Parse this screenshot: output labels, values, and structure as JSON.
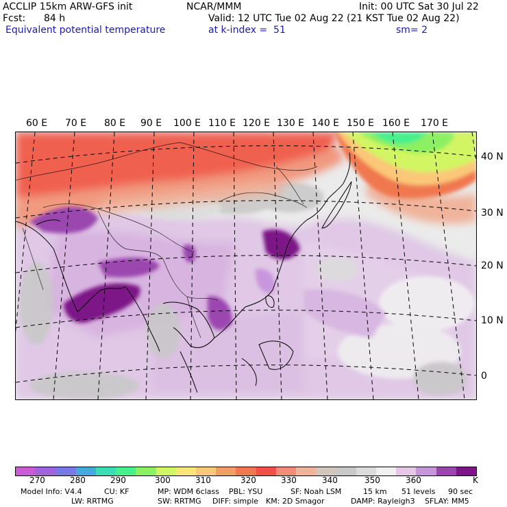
{
  "header": {
    "left_line1": "ACCLIP 15km ARW-GFS init",
    "center_line1": "NCAR/MMM",
    "right_line1": "Init: 00 UTC Sat 30 Jul 22",
    "fcst_label": "Fcst:",
    "fcst_value": "84 h",
    "valid": "Valid: 12 UTC Tue 02 Aug 22 (21 KST Tue 02 Aug 22)",
    "field": "Equivalent potential temperature",
    "level": "at k-index =  51",
    "smooth": "sm= 2"
  },
  "map": {
    "lon_labels": [
      "60 E",
      "70 E",
      "80 E",
      "90 E",
      "100 E",
      "110 E",
      "120 E",
      "130 E",
      "140 E",
      "150 E",
      "160 E",
      "170 E"
    ],
    "lat_labels": [
      "40 N",
      "30 N",
      "20 N",
      "10 N",
      "0"
    ]
  },
  "colorbar": {
    "colors": [
      "#c85ad2",
      "#a064dc",
      "#7878e6",
      "#46aadc",
      "#3cdcb4",
      "#46f08c",
      "#8cf064",
      "#d2f564",
      "#fae678",
      "#fac878",
      "#f0a064",
      "#f07850",
      "#f05046",
      "#f08c78",
      "#f0b49b",
      "#d2c8be",
      "#c8c8c8",
      "#dcdcdc",
      "#f0f0f0",
      "#e6c8e6",
      "#c896dc",
      "#9b46af",
      "#7d1487"
    ],
    "labels": [
      "270",
      "280",
      "290",
      "300",
      "310",
      "320",
      "330",
      "340",
      "350",
      "360"
    ],
    "unit": "K"
  },
  "footer": {
    "model_info": "Model Info: V4.4",
    "cu": "CU: KF",
    "mp": "MP: WDM 6class",
    "pbl": "PBL: YSU",
    "sf": "SF: Noah LSM",
    "res": "15 km",
    "levels": "51 levels",
    "dt": "90 sec",
    "lw": "LW: RRTMG",
    "sw": "SW: RRTMG",
    "diff": "DIFF: simple",
    "km": "KM: 2D Smagor",
    "damp": "DAMP: Rayleigh3",
    "sflay": "SFLAY: MM5"
  }
}
